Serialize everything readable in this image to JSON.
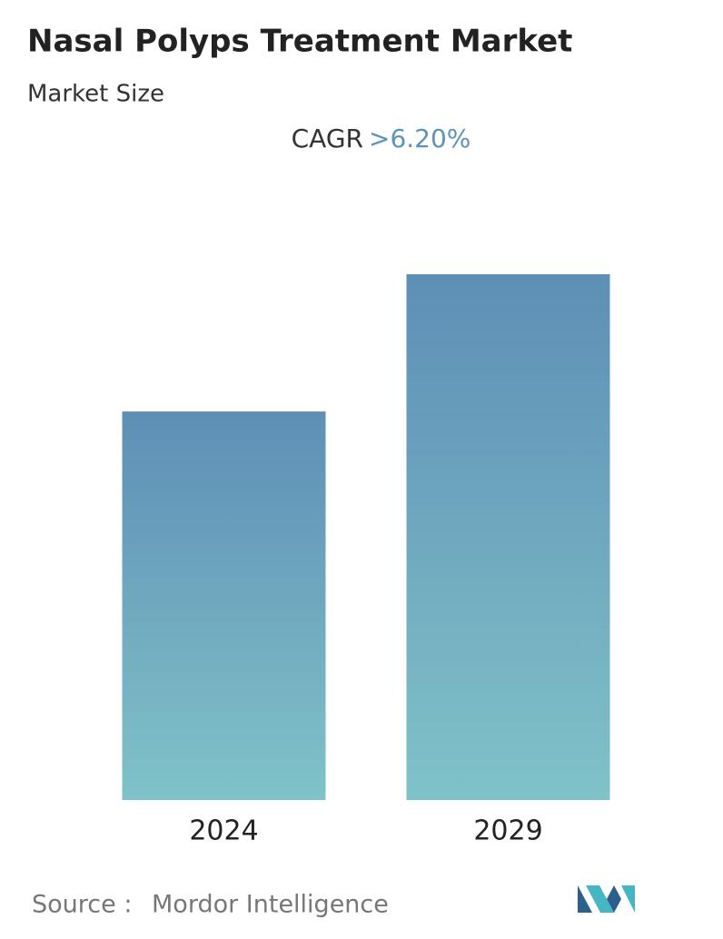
{
  "chart_data": {
    "type": "bar",
    "title": "Nasal Polyps Treatment Market",
    "subtitle": "Market Size",
    "cagr_label": "CAGR",
    "cagr_value": ">6.20%",
    "categories": [
      "2024",
      "2029"
    ],
    "values": [
      73.9,
      100
    ],
    "ylim": [
      0,
      100
    ],
    "color_top": "#5e8fb6",
    "color_bottom": "#80c2c8",
    "source_label": "Source :",
    "source": "Mordor Intelligence"
  }
}
